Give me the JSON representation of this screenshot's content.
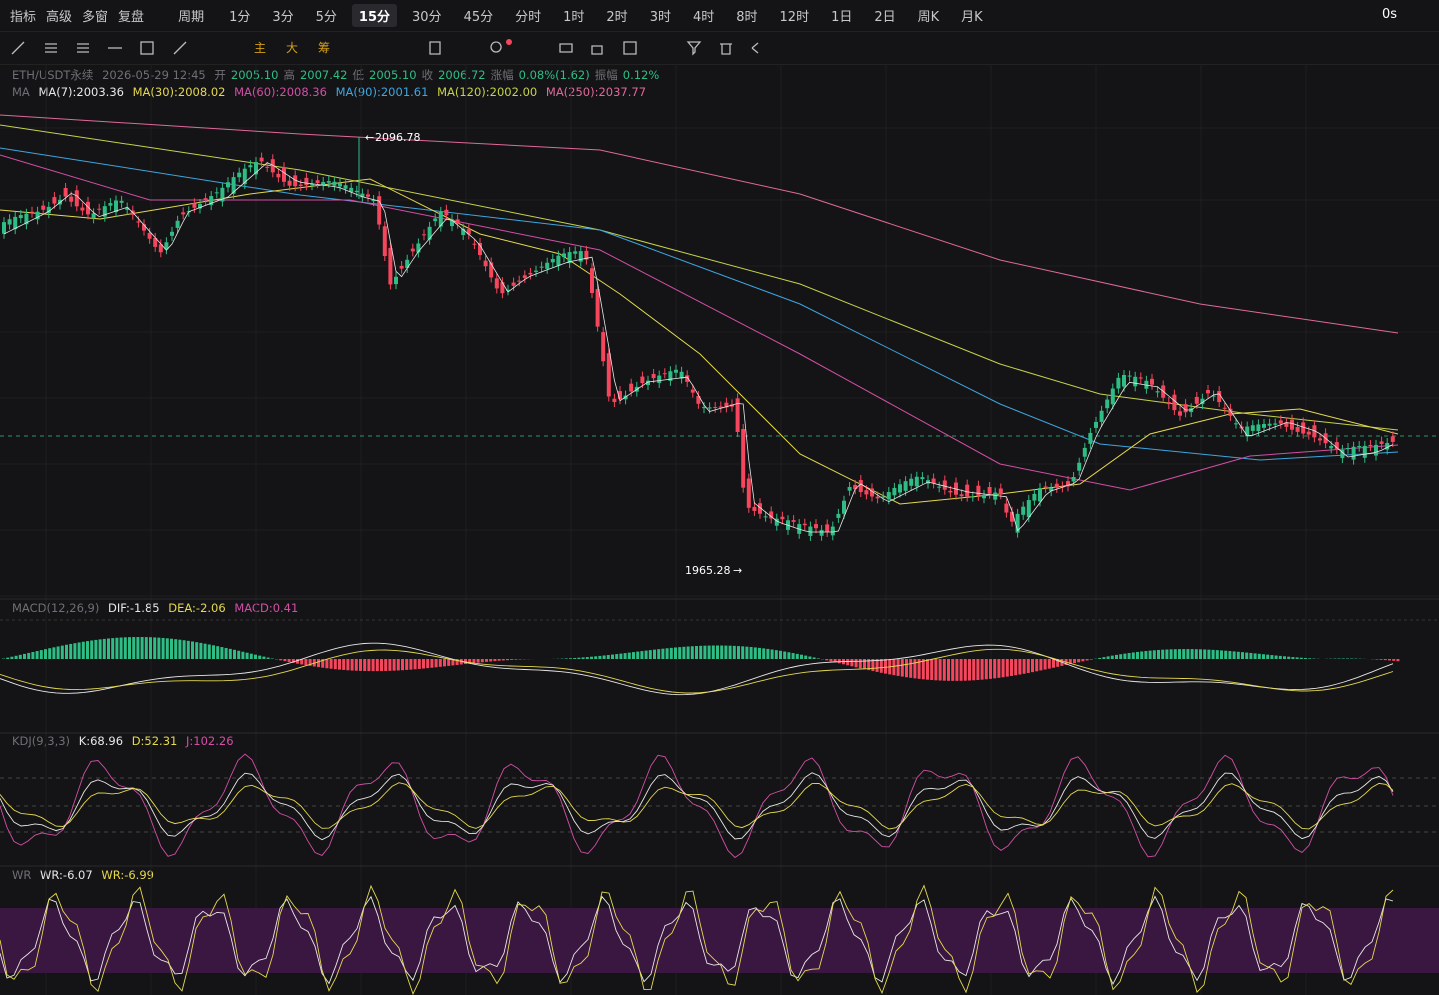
{
  "toolbar": {
    "menus": [
      "指标",
      "高级",
      "多窗",
      "复盘"
    ],
    "period": "周期",
    "intervals": [
      "1分",
      "3分",
      "5分",
      "15分",
      "30分",
      "45分",
      "分时",
      "1时",
      "2时",
      "3时",
      "4时",
      "8时",
      "12时",
      "1日",
      "2日",
      "周K",
      "月K"
    ],
    "selected_index": 3,
    "countdown": "0s"
  },
  "draw_tools": {
    "labels": [
      "主",
      "大",
      "筹"
    ]
  },
  "info": {
    "symbol": "ETH/USDT永续",
    "time": "2026-05-29 12:45",
    "fields": [
      {
        "label": "开",
        "value": "2005.10"
      },
      {
        "label": "高",
        "value": "2007.42"
      },
      {
        "label": "低",
        "value": "2005.10"
      },
      {
        "label": "收",
        "value": "2006.72"
      },
      {
        "label": "涨幅",
        "value": "0.08%(1.62)"
      },
      {
        "label": "振幅",
        "value": "0.12%"
      }
    ]
  },
  "ma": {
    "name": "MA",
    "items": [
      "MA(7):2003.36",
      "MA(30):2008.02",
      "MA(60):2008.36",
      "MA(90):2001.61",
      "MA(120):2002.00",
      "MA(250):2037.77"
    ]
  },
  "annotations": {
    "high": "2096.78",
    "low": "1965.28"
  },
  "macd": {
    "name": "MACD(12,26,9)",
    "items": [
      "DIF:-1.85",
      "DEA:-2.06",
      "MACD:0.41"
    ]
  },
  "kdj": {
    "name": "KDJ(9,3,3)",
    "items": [
      "K:68.96",
      "D:52.31",
      "J:102.26"
    ]
  },
  "wr": {
    "name": "WR",
    "items": [
      "WR:-6.07",
      "WR:-6.99"
    ]
  }
}
